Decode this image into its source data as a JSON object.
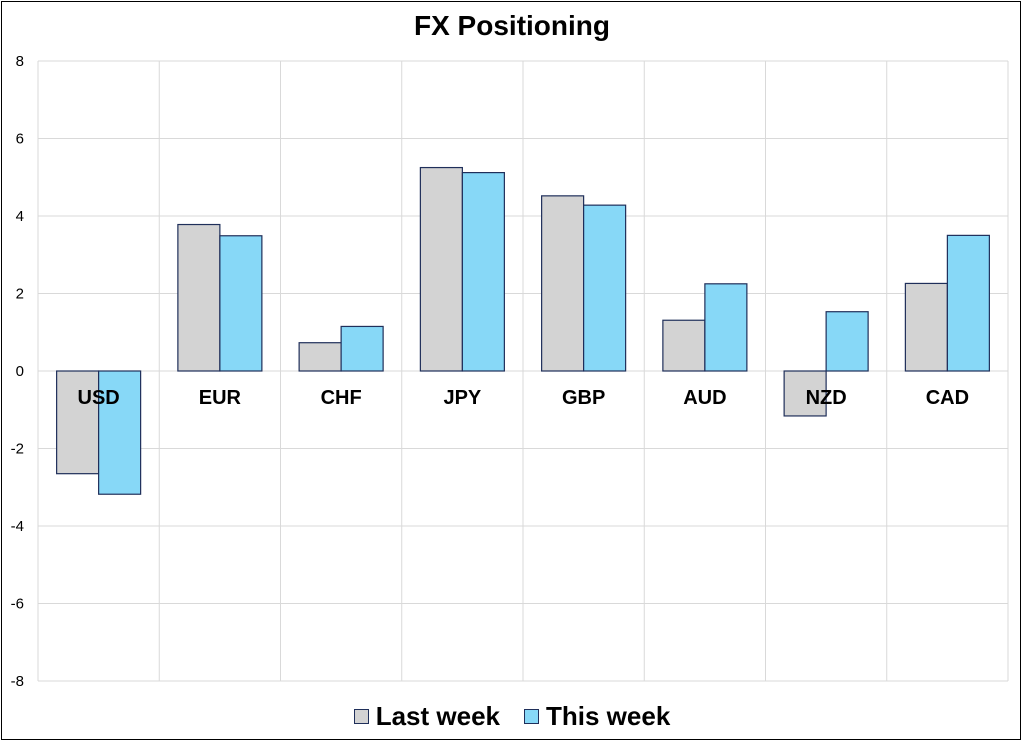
{
  "chart_data": {
    "type": "bar",
    "title": "FX Positioning",
    "xlabel": "",
    "ylabel": "",
    "categories": [
      "USD",
      "EUR",
      "CHF",
      "JPY",
      "GBP",
      "AUD",
      "NZD",
      "CAD"
    ],
    "series": [
      {
        "name": "Last week",
        "values": [
          -2.65,
          3.78,
          0.73,
          5.25,
          4.52,
          1.31,
          -1.16,
          2.26
        ],
        "color": "#d3d3d3"
      },
      {
        "name": "This week",
        "values": [
          -3.18,
          3.49,
          1.15,
          5.12,
          4.28,
          2.25,
          1.53,
          3.5
        ],
        "color": "#87d8f7"
      }
    ],
    "ylim": [
      -8,
      8
    ],
    "yticks": [
      8,
      6,
      4,
      2,
      0,
      -2,
      -4,
      -6,
      -8
    ],
    "grid": true,
    "legend_position": "bottom",
    "bar_border_color": "#1f2f5a",
    "grid_color": "#d9d9d9"
  }
}
